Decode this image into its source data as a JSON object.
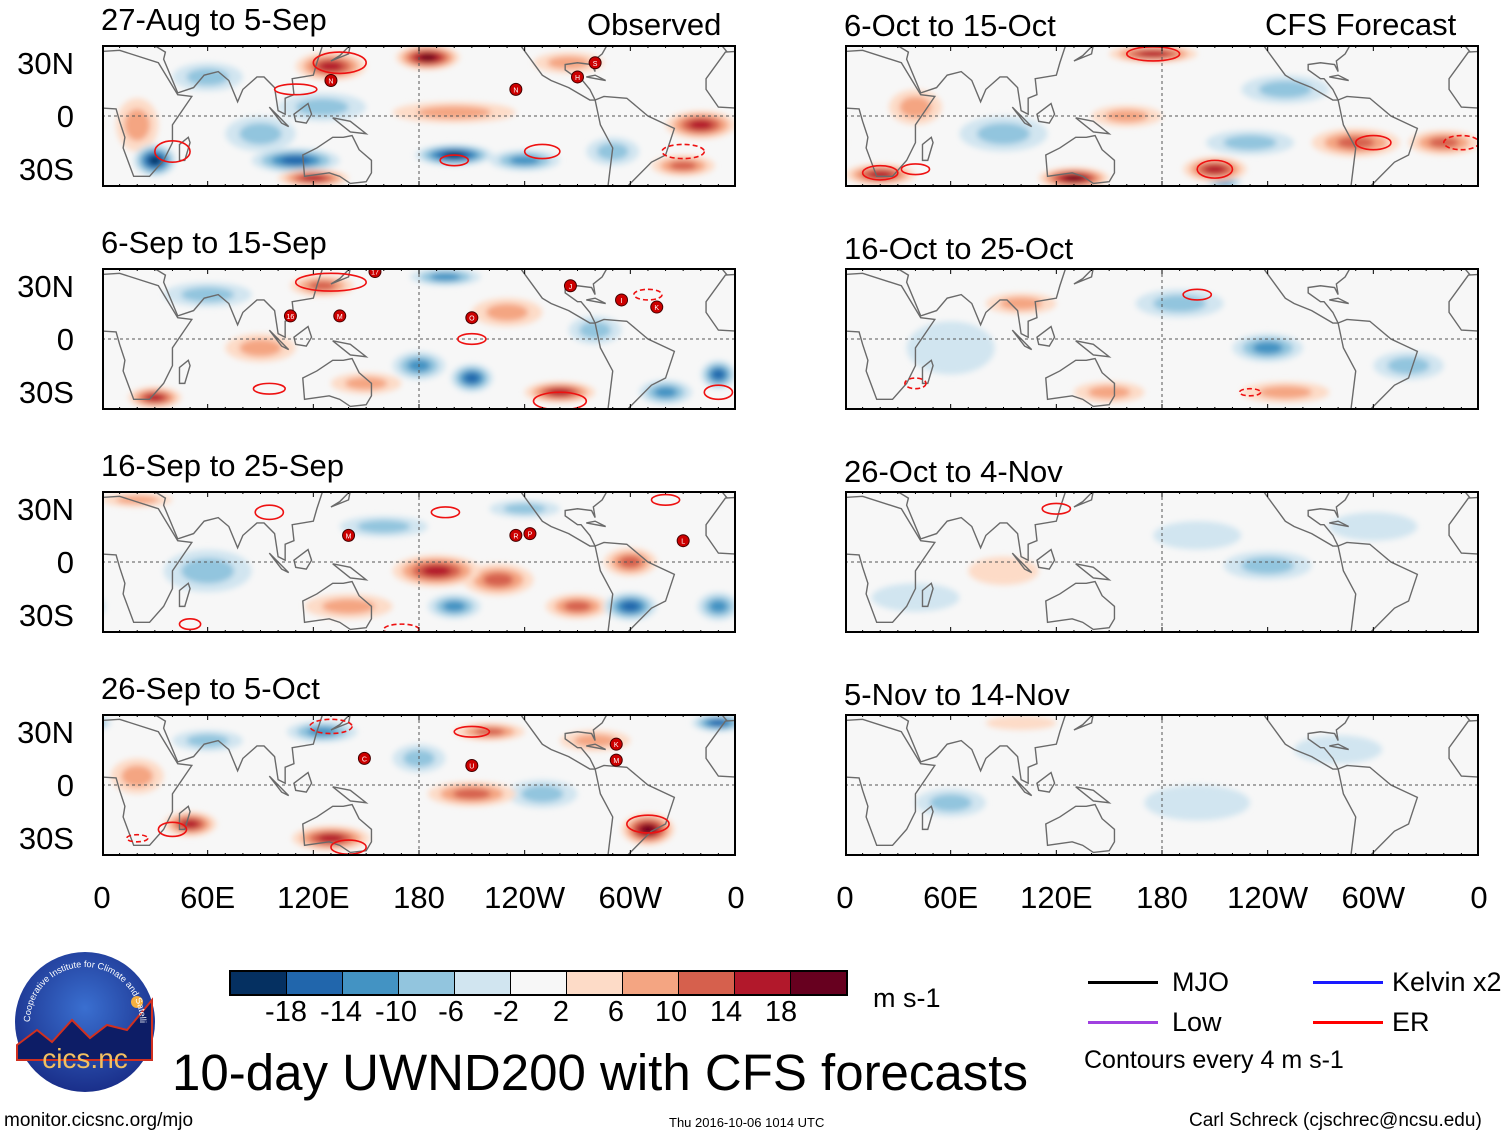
{
  "header": {
    "left_label": "Observed",
    "right_label": "CFS Forecast"
  },
  "panels": [
    {
      "title": "27-Aug to 5-Sep",
      "column": "observed",
      "anomalies": [
        [
          130,
          28,
          14,
          20,
          8
        ],
        [
          185,
          33,
          18,
          18,
          7
        ],
        [
          125,
          5,
          -6,
          25,
          8
        ],
        [
          110,
          -25,
          -14,
          25,
          7
        ],
        [
          30,
          -25,
          -18,
          12,
          9
        ],
        [
          120,
          -35,
          14,
          20,
          5
        ],
        [
          200,
          -22,
          -18,
          22,
          6
        ],
        [
          240,
          -25,
          -10,
          20,
          6
        ],
        [
          340,
          -5,
          14,
          20,
          8
        ],
        [
          200,
          2,
          6,
          35,
          6
        ],
        [
          90,
          -10,
          -6,
          20,
          10
        ],
        [
          60,
          22,
          -6,
          20,
          8
        ],
        [
          330,
          -28,
          10,
          18,
          6
        ],
        [
          290,
          -20,
          -6,
          15,
          8
        ],
        [
          265,
          30,
          6,
          20,
          6
        ],
        [
          20,
          -5,
          6,
          12,
          15
        ]
      ],
      "contours": [
        [
          135,
          30,
          15,
          6,
          false
        ],
        [
          40,
          -20,
          10,
          6,
          false
        ],
        [
          110,
          15,
          12,
          3,
          false
        ],
        [
          200,
          -25,
          8,
          3,
          false
        ],
        [
          250,
          -20,
          10,
          4,
          false
        ],
        [
          330,
          -20,
          12,
          4,
          true
        ]
      ],
      "storms": [
        [
          "N",
          130,
          20
        ],
        [
          "N",
          235,
          15
        ],
        [
          "H",
          270,
          22
        ],
        [
          "S",
          280,
          30
        ]
      ]
    },
    {
      "title": "6-Sep to 15-Sep",
      "column": "observed",
      "anomalies": [
        [
          30,
          -33,
          14,
          15,
          6
        ],
        [
          180,
          -15,
          -10,
          15,
          8
        ],
        [
          210,
          -22,
          -14,
          12,
          8
        ],
        [
          230,
          15,
          6,
          20,
          8
        ],
        [
          260,
          -30,
          14,
          20,
          6
        ],
        [
          320,
          -30,
          -10,
          15,
          7
        ],
        [
          350,
          -20,
          -14,
          10,
          8
        ],
        [
          150,
          -25,
          6,
          20,
          6
        ],
        [
          60,
          25,
          -6,
          25,
          7
        ],
        [
          125,
          30,
          10,
          18,
          6
        ],
        [
          195,
          35,
          -10,
          20,
          5
        ],
        [
          90,
          -5,
          6,
          20,
          8
        ],
        [
          280,
          5,
          -6,
          15,
          8
        ]
      ],
      "contours": [
        [
          130,
          32,
          20,
          5,
          false
        ],
        [
          210,
          0,
          8,
          3,
          false
        ],
        [
          95,
          -28,
          9,
          3,
          false
        ],
        [
          260,
          -35,
          15,
          5,
          false
        ],
        [
          350,
          -30,
          8,
          4,
          false
        ],
        [
          310,
          25,
          8,
          3,
          true
        ]
      ],
      "storms": [
        [
          "17",
          155,
          38
        ],
        [
          "16",
          107,
          13
        ],
        [
          "M",
          135,
          13
        ],
        [
          "O",
          210,
          12
        ],
        [
          "J",
          266,
          30
        ],
        [
          "I",
          295,
          22
        ],
        [
          "K",
          315,
          18
        ]
      ]
    },
    {
      "title": "16-Sep to 25-Sep",
      "column": "observed",
      "anomalies": [
        [
          190,
          -5,
          14,
          25,
          9
        ],
        [
          225,
          -10,
          10,
          20,
          9
        ],
        [
          300,
          -25,
          -14,
          15,
          8
        ],
        [
          200,
          -25,
          -10,
          15,
          7
        ],
        [
          270,
          -25,
          10,
          18,
          7
        ],
        [
          60,
          -5,
          -6,
          25,
          12
        ],
        [
          160,
          20,
          -6,
          25,
          6
        ],
        [
          140,
          -25,
          6,
          25,
          7
        ],
        [
          300,
          0,
          10,
          15,
          8
        ],
        [
          350,
          -25,
          -10,
          12,
          8
        ],
        [
          20,
          35,
          6,
          20,
          4
        ],
        [
          240,
          30,
          -6,
          20,
          5
        ]
      ],
      "contours": [
        [
          95,
          28,
          8,
          4,
          false
        ],
        [
          195,
          28,
          8,
          3,
          false
        ],
        [
          320,
          35,
          8,
          3,
          false
        ],
        [
          170,
          -38,
          10,
          3,
          true
        ],
        [
          50,
          -35,
          6,
          3,
          false
        ]
      ],
      "storms": [
        [
          "M",
          140,
          15
        ],
        [
          "R",
          235,
          15
        ],
        [
          "P",
          243,
          16
        ],
        [
          "L",
          330,
          12
        ]
      ]
    },
    {
      "title": "26-Sep to 5-Oct",
      "column": "observed",
      "anomalies": [
        [
          125,
          30,
          -10,
          20,
          6
        ],
        [
          50,
          -22,
          14,
          15,
          7
        ],
        [
          130,
          -30,
          14,
          22,
          7
        ],
        [
          220,
          30,
          10,
          20,
          5
        ],
        [
          350,
          35,
          -14,
          15,
          5
        ],
        [
          310,
          -25,
          18,
          15,
          9
        ],
        [
          250,
          -5,
          -6,
          20,
          8
        ],
        [
          210,
          -5,
          10,
          25,
          7
        ],
        [
          180,
          15,
          -6,
          15,
          8
        ],
        [
          20,
          5,
          6,
          15,
          10
        ],
        [
          60,
          25,
          -6,
          20,
          6
        ],
        [
          280,
          25,
          6,
          20,
          6
        ]
      ],
      "contours": [
        [
          130,
          33,
          12,
          4,
          true
        ],
        [
          210,
          30,
          10,
          3,
          false
        ],
        [
          40,
          -25,
          8,
          4,
          false
        ],
        [
          140,
          -35,
          10,
          4,
          false
        ],
        [
          310,
          -22,
          12,
          5,
          false
        ],
        [
          20,
          -30,
          6,
          2,
          true
        ]
      ],
      "storms": [
        [
          "C",
          149,
          15
        ],
        [
          "U",
          210,
          11
        ],
        [
          "K",
          292,
          23
        ],
        [
          "M",
          292,
          14
        ]
      ]
    },
    {
      "title": "6-Oct to 15-Oct",
      "column": "forecast",
      "anomalies": [
        [
          175,
          35,
          14,
          25,
          5
        ],
        [
          130,
          -35,
          18,
          20,
          6
        ],
        [
          210,
          -30,
          14,
          18,
          7
        ],
        [
          215,
          -37,
          -10,
          10,
          4
        ],
        [
          20,
          -33,
          14,
          20,
          6
        ],
        [
          290,
          -15,
          10,
          25,
          8
        ],
        [
          340,
          -15,
          10,
          20,
          7
        ],
        [
          90,
          -10,
          -6,
          25,
          10
        ],
        [
          250,
          15,
          -6,
          25,
          8
        ],
        [
          230,
          -15,
          -6,
          25,
          7
        ],
        [
          40,
          5,
          6,
          15,
          10
        ],
        [
          160,
          0,
          6,
          20,
          6
        ]
      ],
      "contours": [
        [
          175,
          35,
          15,
          4,
          false
        ],
        [
          210,
          -30,
          10,
          5,
          false
        ],
        [
          20,
          -32,
          10,
          4,
          false
        ],
        [
          300,
          -15,
          10,
          4,
          false
        ],
        [
          350,
          -15,
          10,
          4,
          true
        ],
        [
          40,
          -30,
          8,
          3,
          false
        ]
      ],
      "storms": []
    },
    {
      "title": "16-Oct to 25-Oct",
      "column": "forecast",
      "anomalies": [
        [
          240,
          -5,
          -10,
          20,
          8
        ],
        [
          190,
          20,
          -6,
          25,
          8
        ],
        [
          250,
          -30,
          6,
          25,
          6
        ],
        [
          150,
          -30,
          6,
          20,
          6
        ],
        [
          100,
          20,
          6,
          20,
          6
        ],
        [
          60,
          -5,
          -2,
          25,
          15
        ],
        [
          320,
          -15,
          -6,
          20,
          8
        ]
      ],
      "contours": [
        [
          200,
          25,
          8,
          3,
          false
        ],
        [
          230,
          -30,
          6,
          2,
          true
        ],
        [
          40,
          -25,
          6,
          3,
          true
        ]
      ],
      "storms": []
    },
    {
      "title": "26-Oct to 4-Nov",
      "column": "forecast",
      "anomalies": [
        [
          240,
          -2,
          -6,
          25,
          8
        ],
        [
          90,
          -5,
          2,
          20,
          8
        ],
        [
          300,
          20,
          -2,
          25,
          8
        ],
        [
          40,
          -20,
          -2,
          25,
          8
        ],
        [
          200,
          15,
          -2,
          25,
          8
        ]
      ],
      "contours": [
        [
          120,
          30,
          8,
          3,
          false
        ]
      ],
      "storms": []
    },
    {
      "title": "5-Nov to 14-Nov",
      "column": "forecast",
      "anomalies": [
        [
          60,
          -10,
          -6,
          20,
          8
        ],
        [
          200,
          -10,
          -2,
          30,
          10
        ],
        [
          100,
          35,
          2,
          20,
          4
        ],
        [
          280,
          20,
          -2,
          25,
          8
        ]
      ],
      "contours": [],
      "storms": []
    }
  ],
  "lat_labels": [
    "30N",
    "0",
    "30S"
  ],
  "lon_labels": [
    "0",
    "60E",
    "120E",
    "180",
    "120W",
    "60W",
    "0"
  ],
  "colorbar": {
    "colors": [
      "#053061",
      "#2166ac",
      "#4393c3",
      "#92c5de",
      "#d1e5f0",
      "#f7f7f7",
      "#fddbc7",
      "#f4a582",
      "#d6604d",
      "#b2182b",
      "#67001f"
    ],
    "labels": [
      "-18",
      "-14",
      "-10",
      "-6",
      "-2",
      "2",
      "6",
      "10",
      "14",
      "18"
    ],
    "units": "m s-1"
  },
  "legend": {
    "mjo": "MJO",
    "kelvin": "Kelvin x2",
    "low": "Low",
    "er": "ER",
    "contours_note": "Contours every 4 m s-1",
    "colors": {
      "mjo": "#000000",
      "kelvin": "#1a1aff",
      "low": "#a040e0",
      "er": "#ff0000"
    }
  },
  "title": "10-day UWND200 with CFS forecasts",
  "footer": {
    "url": "monitor.cicsnc.org/mjo",
    "timestamp": "Thu 2016-10-06 1014 UTC",
    "author": "Carl Schreck (cjschrec@ncsu.edu)"
  },
  "logo": {
    "text": "cics.nc",
    "ring_text": "Cooperative Institute for Climate and Satellites"
  }
}
